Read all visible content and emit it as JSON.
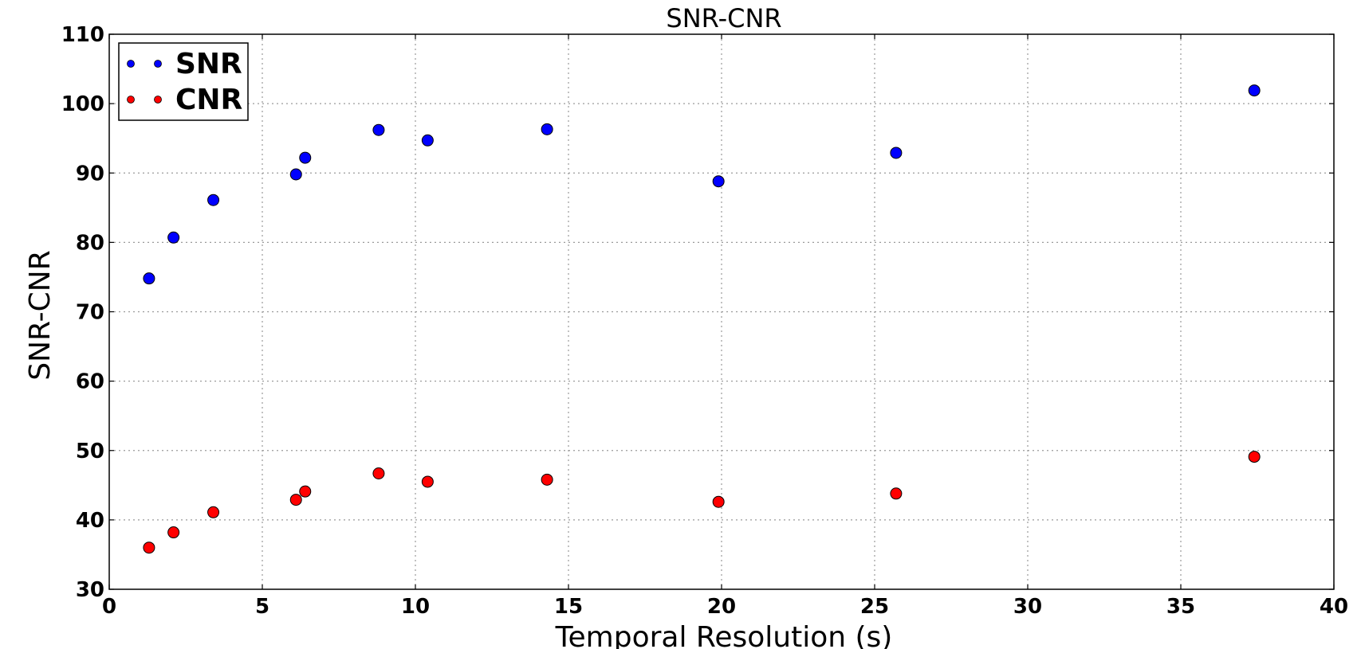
{
  "chart_data": {
    "type": "scatter",
    "title": "SNR-CNR",
    "xlabel": "Temporal Resolution (s)",
    "ylabel": "SNR-CNR",
    "xlim": [
      0,
      40
    ],
    "ylim": [
      30,
      110
    ],
    "xticks": [
      0,
      5,
      10,
      15,
      20,
      25,
      30,
      35,
      40
    ],
    "yticks": [
      30,
      40,
      50,
      60,
      70,
      80,
      90,
      100,
      110
    ],
    "grid": true,
    "legend_position": "upper-left",
    "series": [
      {
        "name": "SNR",
        "color": "#0000ff",
        "x": [
          1.3,
          2.1,
          3.4,
          6.1,
          6.4,
          8.8,
          10.4,
          14.3,
          19.9,
          25.7,
          37.4
        ],
        "y": [
          74.8,
          80.7,
          86.1,
          89.8,
          92.2,
          96.2,
          94.7,
          96.3,
          88.8,
          92.9,
          101.9
        ]
      },
      {
        "name": "CNR",
        "color": "#ff0000",
        "x": [
          1.3,
          2.1,
          3.4,
          6.1,
          6.4,
          8.8,
          10.4,
          14.3,
          19.9,
          25.7,
          37.4
        ],
        "y": [
          36.0,
          38.2,
          41.1,
          42.9,
          44.1,
          46.7,
          45.5,
          45.8,
          42.6,
          43.8,
          49.1
        ]
      }
    ]
  }
}
